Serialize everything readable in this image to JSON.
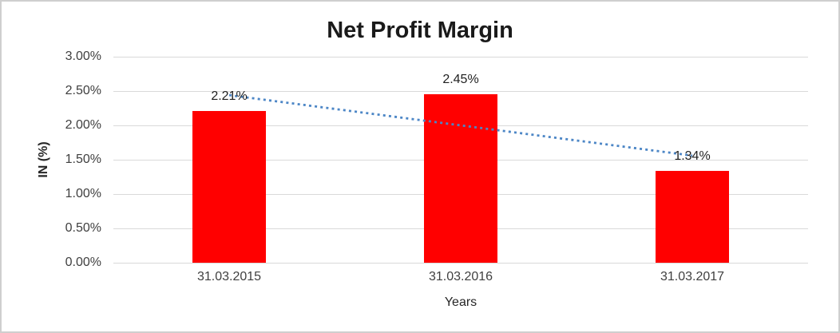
{
  "chart": {
    "title": "Net Profit Margin",
    "y_axis_title": "IN (%)",
    "x_axis_title": "Years"
  },
  "chart_data": {
    "type": "bar",
    "title": "Net Profit Margin",
    "categories": [
      "31.03.2015",
      "31.03.2016",
      "31.03.2017"
    ],
    "series": [
      {
        "name": "Net Profit Margin",
        "values": [
          2.21,
          2.45,
          1.34
        ],
        "color": "#FF0000"
      }
    ],
    "data_labels": [
      "2.21%",
      "2.45%",
      "1.34%"
    ],
    "xlabel": "Years",
    "ylabel": "IN (%)",
    "ylim": [
      0,
      3
    ],
    "ytick_step": 0.5,
    "ytick_labels": [
      "0.00%",
      "0.50%",
      "1.00%",
      "1.50%",
      "2.00%",
      "2.50%",
      "3.00%"
    ],
    "grid": true,
    "legend": "none",
    "trendline": {
      "type": "linear",
      "style": "dotted",
      "color": "#4C86C6",
      "start_value": 2.44,
      "end_value": 1.56
    },
    "colors": {
      "bar": "#FF0000",
      "gridline": "#D9D9D9",
      "axis_text": "#3F3F3F",
      "title_text": "#1A1A1A",
      "trendline": "#4C86C6",
      "border": "#CFCFCF"
    }
  }
}
